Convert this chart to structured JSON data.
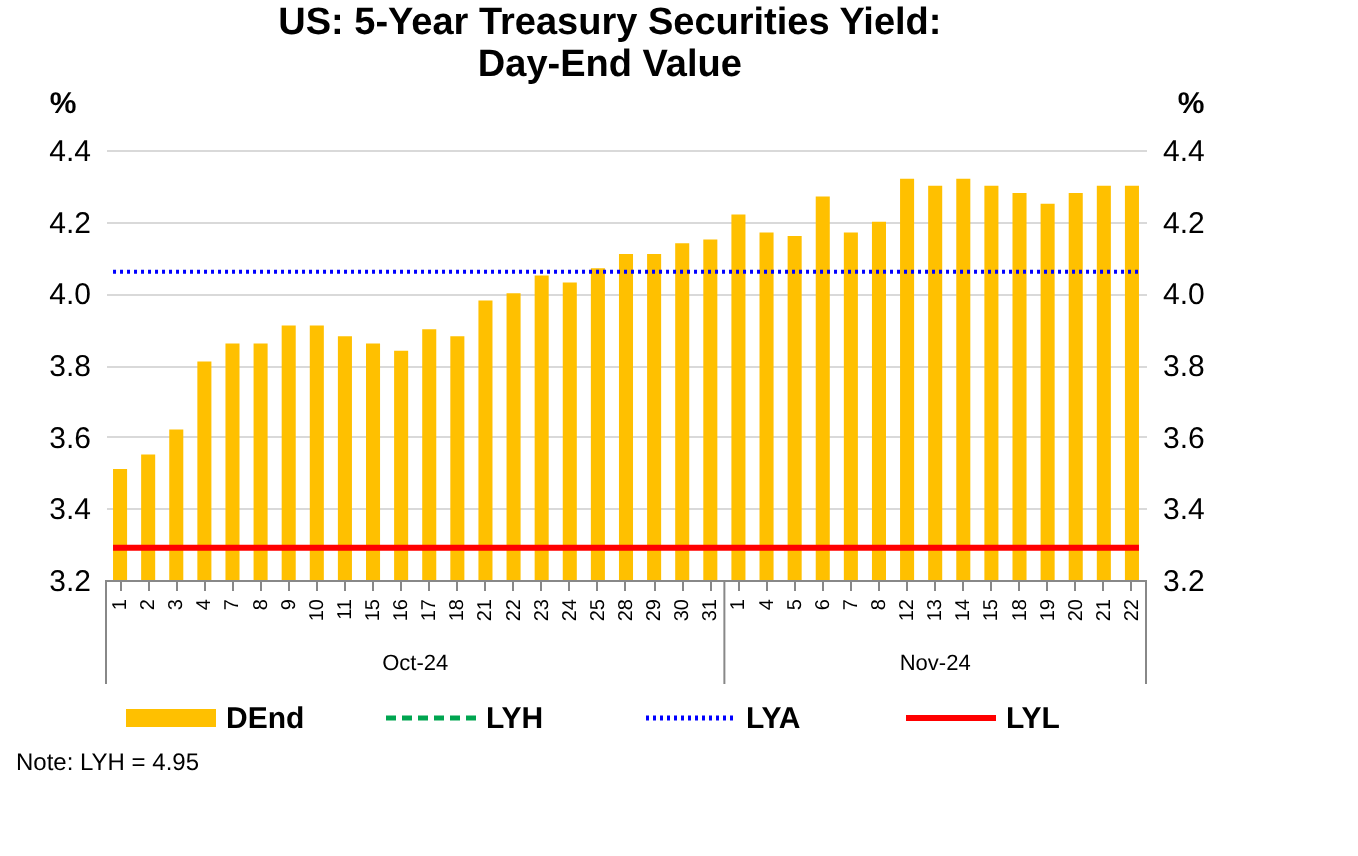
{
  "chart_data": {
    "type": "bar",
    "title": "US: 5-Year Treasury Securities Yield:\nDay-End Value",
    "categories": [
      "1",
      "2",
      "3",
      "4",
      "7",
      "8",
      "9",
      "10",
      "11",
      "15",
      "16",
      "17",
      "18",
      "21",
      "22",
      "23",
      "24",
      "25",
      "28",
      "29",
      "30",
      "31",
      "1",
      "4",
      "5",
      "6",
      "7",
      "8",
      "12",
      "13",
      "14",
      "15",
      "18",
      "19",
      "20",
      "21",
      "22"
    ],
    "series": [
      {
        "name": "DEnd",
        "color": "#ffc000",
        "values": [
          3.51,
          3.55,
          3.62,
          3.81,
          3.86,
          3.86,
          3.91,
          3.91,
          3.88,
          3.86,
          3.84,
          3.9,
          3.88,
          3.98,
          4.0,
          4.05,
          4.03,
          4.07,
          4.11,
          4.11,
          4.14,
          4.15,
          4.22,
          4.17,
          4.16,
          4.27,
          4.17,
          4.2,
          4.32,
          4.3,
          4.32,
          4.3,
          4.28,
          4.25,
          4.28,
          4.3,
          4.3
        ]
      },
      {
        "name": "LYH",
        "type": "line",
        "color": "#00a550",
        "line_style": "dashed",
        "values": [
          null,
          null,
          null,
          null,
          null,
          null,
          null,
          null,
          null,
          null,
          null,
          null,
          null,
          null,
          null,
          null,
          null,
          null,
          null,
          null,
          null,
          null,
          null,
          null,
          null,
          null,
          null,
          null,
          null,
          null,
          null,
          null,
          null,
          null,
          null,
          null,
          null
        ]
      }
    ],
    "ref_lines": [
      {
        "axis": "y",
        "value": 4.06,
        "label": "LYA",
        "color": "#0000ff",
        "line_style": "dotted"
      },
      {
        "axis": "y",
        "value": 3.29,
        "label": "LYL",
        "color": "#ff0000",
        "line_style": "solid"
      }
    ],
    "ylabel": "%",
    "y2label": "%",
    "ylim": [
      3.2,
      4.4
    ],
    "yticks": [
      {
        "value": 3.2,
        "label": "3.2"
      },
      {
        "value": 3.4,
        "label": "3.4"
      },
      {
        "value": 3.6,
        "label": "3.6"
      },
      {
        "value": 3.8,
        "label": "3.8"
      },
      {
        "value": 4.0,
        "label": "4.0"
      },
      {
        "value": 4.2,
        "label": "4.2"
      },
      {
        "value": 4.4,
        "label": "4.4"
      }
    ],
    "y2lim": [
      3.2,
      4.4
    ],
    "y2ticks": [
      {
        "value": 3.2,
        "label": "3.2"
      },
      {
        "value": 3.4,
        "label": "3.4"
      },
      {
        "value": 3.6,
        "label": "3.6"
      },
      {
        "value": 3.8,
        "label": "3.8"
      },
      {
        "value": 4.0,
        "label": "4.0"
      },
      {
        "value": 4.2,
        "label": "4.2"
      },
      {
        "value": 4.4,
        "label": "4.4"
      }
    ],
    "grid": "y",
    "legend": "bottom",
    "annotations": [
      "Oct-24",
      "Nov-24",
      "Note: LYH = 4.95"
    ]
  }
}
